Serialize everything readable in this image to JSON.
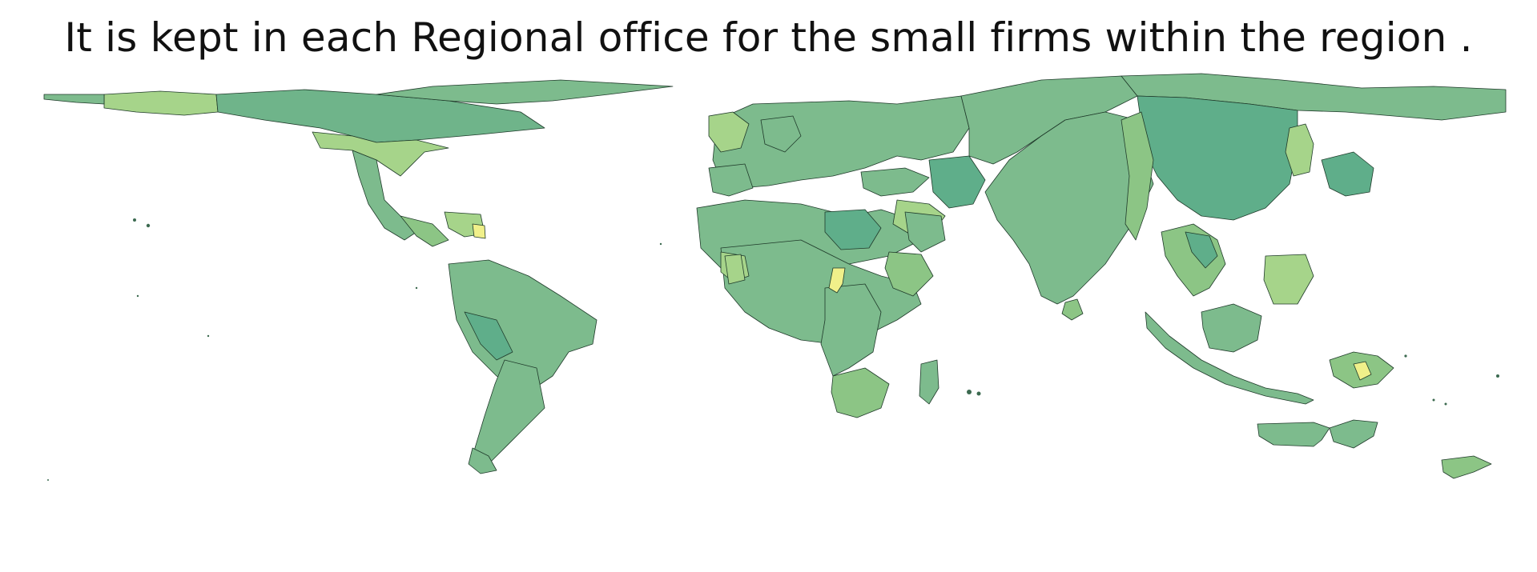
{
  "title": "It is kept in each Regional office for the small firms within the region .",
  "colors": {
    "background": "#ffffff",
    "base_land": "#7dbb8d",
    "dark_land": "#5fae8a",
    "mid_land": "#8cc585",
    "light_land": "#a6d48a",
    "pale_land": "#bfe08d",
    "highlight": "#f0f08a",
    "border": "#1f3a2a"
  }
}
